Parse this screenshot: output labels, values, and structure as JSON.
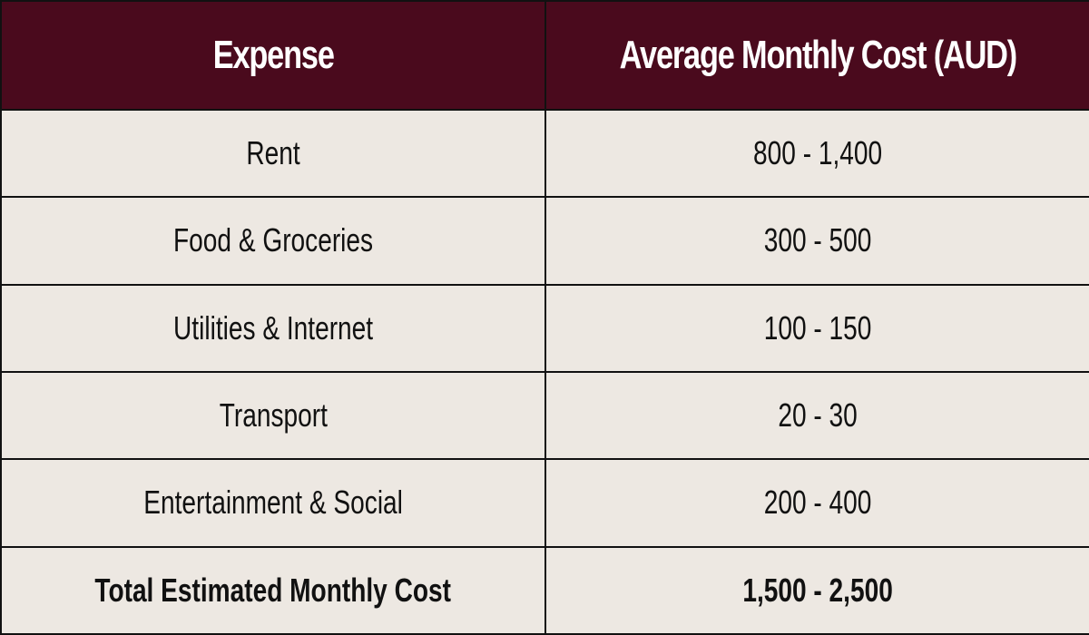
{
  "table": {
    "headers": [
      "Expense",
      "Average Monthly Cost (AUD)"
    ],
    "rows": [
      {
        "expense": "Rent",
        "cost": "800 - 1,400"
      },
      {
        "expense": "Food & Groceries",
        "cost": "300 - 500"
      },
      {
        "expense": "Utilities & Internet",
        "cost": "100 - 150"
      },
      {
        "expense": "Transport",
        "cost": "20 - 30"
      },
      {
        "expense": "Entertainment & Social",
        "cost": "200 - 400"
      }
    ],
    "total": {
      "expense": "Total Estimated Monthly Cost",
      "cost": "1,500 - 2,500"
    }
  },
  "colors": {
    "header_bg": "#4a0a1d",
    "header_text": "#ffffff",
    "body_bg": "#ede8e2",
    "border": "#111111"
  }
}
